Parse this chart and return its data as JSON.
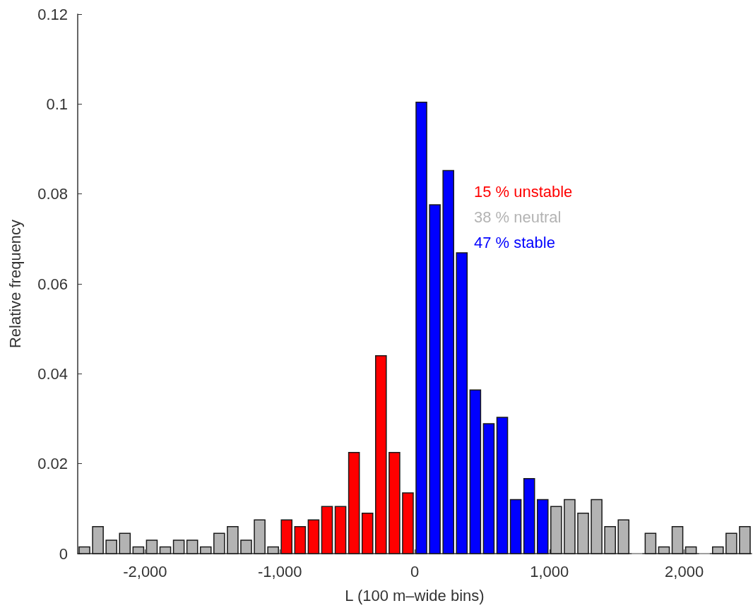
{
  "chart_data": {
    "type": "histogram",
    "xlabel": "L (100 m–wide bins)",
    "ylabel": "Relative frequency",
    "bins": [
      -2500,
      -2400,
      -2300,
      -2200,
      -2100,
      -2000,
      -1900,
      -1800,
      -1700,
      -1600,
      -1500,
      -1400,
      -1300,
      -1200,
      -1100,
      -1000,
      -900,
      -800,
      -700,
      -600,
      -500,
      -400,
      -300,
      -200,
      -100,
      0,
      100,
      200,
      300,
      400,
      500,
      600,
      700,
      800,
      900,
      1000,
      1100,
      1200,
      1300,
      1400,
      1500,
      1600,
      1700,
      1800,
      1900,
      2000,
      2100,
      2200,
      2300,
      2400,
      2500
    ],
    "series": [
      {
        "name": "15 % unstable",
        "color": "#ff0000",
        "values": [
          null,
          null,
          null,
          null,
          null,
          null,
          null,
          null,
          null,
          null,
          null,
          null,
          null,
          null,
          null,
          0.0075,
          0.006,
          0.0075,
          0.0105,
          0.0105,
          0.0225,
          0.009,
          0.044,
          0.0225,
          0.0135,
          null,
          null,
          null,
          null,
          null,
          null,
          null,
          null,
          null,
          null,
          null,
          null,
          null,
          null,
          null,
          null,
          null,
          null,
          null,
          null,
          null,
          null,
          null,
          null,
          null
        ]
      },
      {
        "name": "38 % neutral",
        "color": "#b3b3b3",
        "values": [
          0.0015,
          0.006,
          0.003,
          0.0045,
          0.0015,
          0.003,
          0.0015,
          0.003,
          0.003,
          0.0015,
          0.0045,
          0.006,
          0.003,
          0.0075,
          0.0015,
          null,
          null,
          null,
          null,
          null,
          null,
          null,
          null,
          null,
          null,
          null,
          null,
          null,
          null,
          null,
          null,
          null,
          null,
          null,
          null,
          0.0105,
          0.012,
          0.009,
          0.012,
          0.006,
          0.0075,
          0,
          0.0045,
          0.0015,
          0.006,
          0.0015,
          0,
          0.0015,
          0.0045,
          0.006
        ]
      },
      {
        "name": "47 % stable",
        "color": "#0000ff",
        "values": [
          null,
          null,
          null,
          null,
          null,
          null,
          null,
          null,
          null,
          null,
          null,
          null,
          null,
          null,
          null,
          null,
          null,
          null,
          null,
          null,
          null,
          null,
          null,
          null,
          null,
          0.1004,
          0.0776,
          0.0852,
          0.0669,
          0.0364,
          0.0289,
          0.0303,
          0.012,
          0.0167,
          0.012,
          null,
          null,
          null,
          null,
          null,
          null,
          null,
          null,
          null,
          null,
          null,
          null,
          null,
          null,
          null
        ]
      }
    ],
    "xlim": [
      -2500,
      2500
    ],
    "xticks": [
      {
        "value": -2000,
        "label": "-2,000"
      },
      {
        "value": -1000,
        "label": "-1,000"
      },
      0,
      {
        "value": 1000,
        "label": "1,000"
      },
      {
        "value": 2000,
        "label": "2,000"
      }
    ],
    "ylim": [
      0,
      0.12
    ],
    "yticks": [
      0,
      0.02,
      0.04,
      0.06,
      0.08,
      0.1,
      0.12
    ],
    "legend": "top right",
    "grid": false
  }
}
